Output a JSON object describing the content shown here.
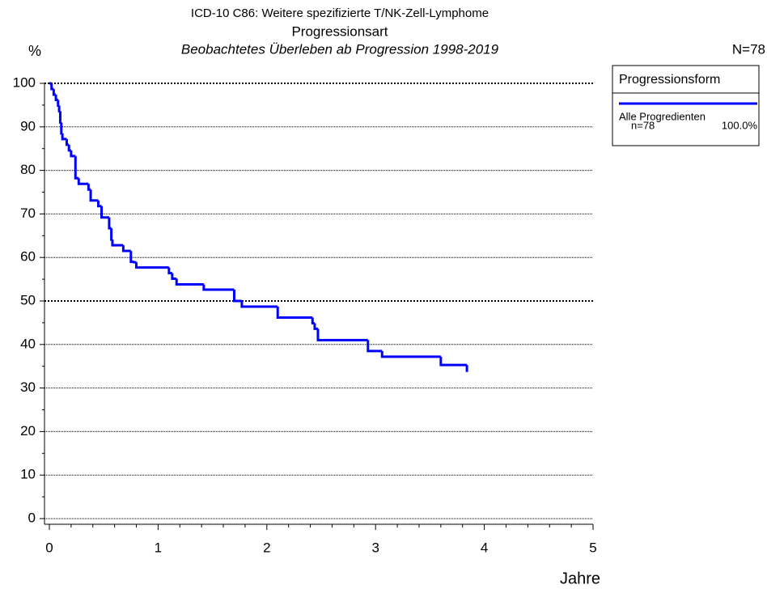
{
  "chart_data": {
    "type": "step",
    "title": "ICD-10 C86: Weitere spezifizierte T/NK-Zell-Lymphome",
    "subtitle": "Progressionsart",
    "subtitle2": "Beobachtetes Überleben ab Progression 1998-2019",
    "n_total": "N=78",
    "y_label": "%",
    "x_label": "Jahre",
    "legend_title": "Progressionsform",
    "xlim": [
      0,
      5
    ],
    "xticks": [
      0,
      1,
      2,
      3,
      4,
      5
    ],
    "ylim": [
      0,
      100
    ],
    "yticks": [
      0,
      10,
      20,
      30,
      40,
      50,
      60,
      70,
      80,
      90,
      100
    ],
    "grid": true,
    "series": [
      {
        "name": "Alle Progredienten",
        "n": "n=78",
        "share": "100.0%",
        "color": "#0000ff",
        "x": [
          0,
          0.02,
          0.04,
          0.06,
          0.08,
          0.09,
          0.1,
          0.11,
          0.12,
          0.16,
          0.18,
          0.2,
          0.24,
          0.27,
          0.36,
          0.38,
          0.45,
          0.48,
          0.55,
          0.57,
          0.58,
          0.68,
          0.75,
          0.78,
          0.8,
          1.1,
          1.13,
          1.17,
          1.42,
          1.7,
          1.77,
          2.1,
          2.42,
          2.44,
          2.47,
          2.93,
          3.06,
          3.6,
          3.84
        ],
        "values": [
          100,
          98.7,
          97.4,
          96.2,
          94.9,
          93.6,
          91.0,
          88.5,
          87.2,
          85.9,
          84.6,
          83.3,
          78.2,
          76.9,
          75.6,
          73.1,
          71.8,
          69.2,
          66.7,
          64.1,
          62.8,
          61.5,
          59.0,
          58.9,
          57.7,
          56.4,
          55.1,
          53.8,
          52.6,
          50.0,
          48.7,
          46.2,
          44.9,
          43.6,
          41.0,
          38.5,
          37.2,
          35.3,
          33.7
        ]
      }
    ]
  }
}
